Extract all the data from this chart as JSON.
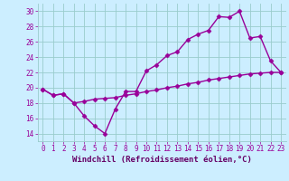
{
  "x": [
    0,
    1,
    2,
    3,
    4,
    5,
    6,
    7,
    8,
    9,
    10,
    11,
    12,
    13,
    14,
    15,
    16,
    17,
    18,
    19,
    20,
    21,
    22,
    23
  ],
  "line1": [
    19.8,
    19.0,
    19.2,
    18.0,
    16.3,
    15.0,
    14.0,
    17.2,
    19.5,
    19.5,
    22.2,
    23.0,
    24.2,
    24.7,
    26.3,
    27.0,
    27.5,
    29.3,
    29.2,
    30.0,
    26.5,
    26.7,
    23.5,
    22.0
  ],
  "line2": [
    19.8,
    19.0,
    19.2,
    18.0,
    18.2,
    18.5,
    18.6,
    18.7,
    19.0,
    19.2,
    19.5,
    19.7,
    20.0,
    20.2,
    20.5,
    20.7,
    21.0,
    21.2,
    21.4,
    21.6,
    21.8,
    21.9,
    22.0,
    22.0
  ],
  "color": "#990099",
  "bg_color": "#cceeff",
  "grid_color": "#99cccc",
  "xlabel": "Windchill (Refroidissement éolien,°C)",
  "xlabel_color": "#660066",
  "ylim": [
    13,
    31
  ],
  "xlim": [
    -0.5,
    23.5
  ],
  "yticks": [
    14,
    16,
    18,
    20,
    22,
    24,
    26,
    28,
    30
  ],
  "xticks": [
    0,
    1,
    2,
    3,
    4,
    5,
    6,
    7,
    8,
    9,
    10,
    11,
    12,
    13,
    14,
    15,
    16,
    17,
    18,
    19,
    20,
    21,
    22,
    23
  ],
  "marker": "D",
  "markersize": 2.5,
  "linewidth": 1.0,
  "tick_fontsize": 5.5,
  "xlabel_fontsize": 6.5
}
